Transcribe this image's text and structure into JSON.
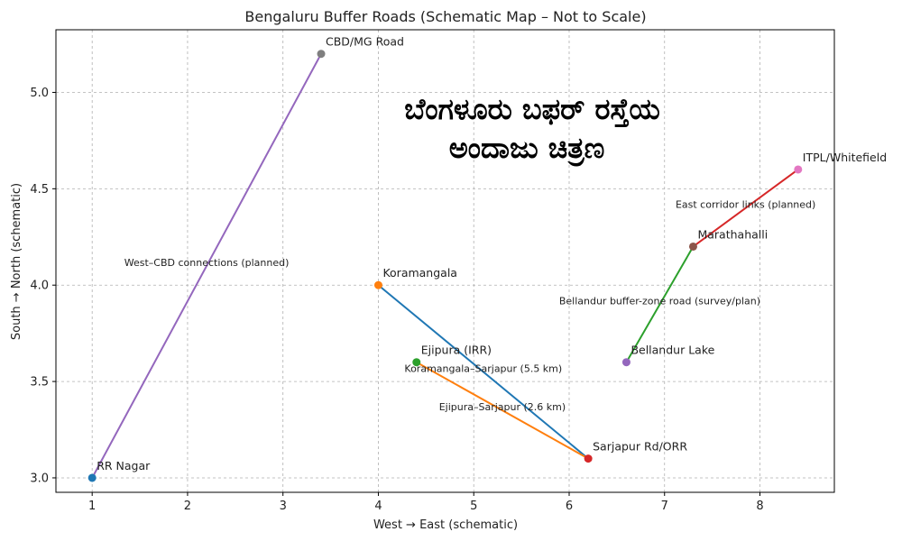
{
  "chart_data": {
    "type": "line",
    "title": "Bengaluru Buffer Roads (Schematic Map – Not to Scale)",
    "xlabel": "West  →  East (schematic)",
    "ylabel": "South  →  North (schematic)",
    "xlim": [
      0.62,
      8.78
    ],
    "ylim": [
      2.925,
      5.325
    ],
    "xticks": [
      1,
      2,
      3,
      4,
      5,
      6,
      7,
      8
    ],
    "yticks": [
      3.0,
      3.5,
      4.0,
      4.5,
      5.0
    ],
    "grid": true,
    "overlay_text": [
      "ಬೆಂಗಳೂರು ಬಫರ್ ರಸ್ತೆಯ",
      "ಅಂದಾಜು ಚಿತ್ರಣ"
    ],
    "points": [
      {
        "name": "RR Nagar",
        "x": 1.0,
        "y": 3.0,
        "color": "#1f77b4"
      },
      {
        "name": "CBD/MG Road",
        "x": 3.4,
        "y": 5.2,
        "color": "#7f7f7f"
      },
      {
        "name": "Koramangala",
        "x": 4.0,
        "y": 4.0,
        "color": "#ff7f0e"
      },
      {
        "name": "Ejipura (IRR)",
        "x": 4.4,
        "y": 3.6,
        "color": "#2ca02c"
      },
      {
        "name": "Sarjapur Rd/ORR",
        "x": 6.2,
        "y": 3.1,
        "color": "#d62728"
      },
      {
        "name": "Bellandur Lake",
        "x": 6.6,
        "y": 3.6,
        "color": "#9467bd"
      },
      {
        "name": "Marathahalli",
        "x": 7.3,
        "y": 4.2,
        "color": "#8c564b"
      },
      {
        "name": "ITPL/Whitefield",
        "x": 8.4,
        "y": 4.6,
        "color": "#e377c2"
      }
    ],
    "series": [
      {
        "name": "Koramangala–Sarjapur (5.5 km)",
        "x": [
          4.0,
          6.2
        ],
        "y": [
          4.0,
          3.1
        ],
        "color": "#1f77b4"
      },
      {
        "name": "Ejipura–Sarjapur (2.6 km)",
        "x": [
          4.4,
          6.2
        ],
        "y": [
          3.6,
          3.1
        ],
        "color": "#ff7f0e"
      },
      {
        "name": "Bellandur buffer-zone road (survey/plan)",
        "x": [
          6.6,
          7.3
        ],
        "y": [
          3.6,
          4.2
        ],
        "color": "#2ca02c"
      },
      {
        "name": "East corridor links (planned)",
        "x": [
          7.3,
          8.4
        ],
        "y": [
          4.2,
          4.6
        ],
        "color": "#d62728"
      },
      {
        "name": "West–CBD connections (planned)",
        "x": [
          1.0,
          3.4
        ],
        "y": [
          3.0,
          5.2
        ],
        "color": "#9467bd"
      }
    ]
  }
}
